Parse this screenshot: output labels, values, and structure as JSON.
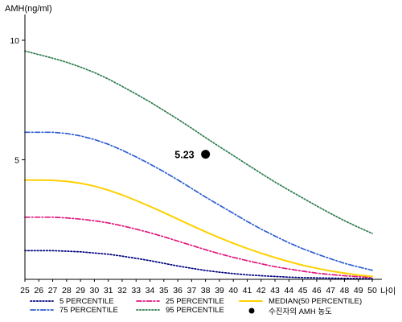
{
  "chart_data": {
    "type": "line",
    "ylabel": "AMH(ng/ml)",
    "xlabel": "나이",
    "x": [
      25,
      26,
      27,
      28,
      29,
      30,
      31,
      32,
      33,
      34,
      35,
      36,
      37,
      38,
      39,
      40,
      41,
      42,
      43,
      44,
      45,
      46,
      47,
      48,
      49,
      50
    ],
    "y_ticks": [
      5,
      10
    ],
    "ylim": [
      0,
      11
    ],
    "xlim": [
      25,
      50
    ],
    "grid": false,
    "legend_position": "bottom",
    "series": [
      {
        "name": "5 PERCENTILE",
        "color": "#000080",
        "dash": "dotted",
        "values": [
          1.2,
          1.2,
          1.2,
          1.18,
          1.15,
          1.1,
          1.05,
          0.97,
          0.88,
          0.78,
          0.67,
          0.56,
          0.46,
          0.37,
          0.3,
          0.24,
          0.19,
          0.15,
          0.12,
          0.09,
          0.07,
          0.06,
          0.05,
          0.04,
          0.03,
          0.03
        ]
      },
      {
        "name": "25 PERCENTILE",
        "color": "#E0177E",
        "dash": "dashdot",
        "values": [
          2.6,
          2.6,
          2.6,
          2.57,
          2.52,
          2.45,
          2.36,
          2.24,
          2.1,
          1.95,
          1.78,
          1.6,
          1.42,
          1.24,
          1.07,
          0.92,
          0.78,
          0.65,
          0.53,
          0.43,
          0.34,
          0.26,
          0.2,
          0.15,
          0.11,
          0.08
        ]
      },
      {
        "name": "MEDIAN(50 PERCENTILE)",
        "color": "#FFD000",
        "dash": "solid",
        "values": [
          4.15,
          4.15,
          4.14,
          4.1,
          4.02,
          3.9,
          3.73,
          3.53,
          3.3,
          3.05,
          2.79,
          2.52,
          2.25,
          1.99,
          1.74,
          1.51,
          1.29,
          1.09,
          0.91,
          0.74,
          0.59,
          0.46,
          0.35,
          0.26,
          0.18,
          0.12
        ]
      },
      {
        "name": "75 PERCENTILE",
        "color": "#2E5FD0",
        "dash": "dashdot",
        "values": [
          6.15,
          6.15,
          6.15,
          6.1,
          6.0,
          5.85,
          5.65,
          5.4,
          5.12,
          4.82,
          4.5,
          4.16,
          3.8,
          3.44,
          3.1,
          2.76,
          2.42,
          2.1,
          1.81,
          1.53,
          1.28,
          1.06,
          0.86,
          0.67,
          0.52,
          0.38
        ]
      },
      {
        "name": "95 PERCENTILE",
        "color": "#2E7D4F",
        "dash": "dotted",
        "values": [
          9.55,
          9.4,
          9.25,
          9.08,
          8.88,
          8.65,
          8.38,
          8.07,
          7.75,
          7.42,
          7.06,
          6.7,
          6.32,
          5.93,
          5.55,
          5.18,
          4.8,
          4.43,
          4.07,
          3.73,
          3.4,
          3.07,
          2.75,
          2.45,
          2.18,
          1.92
        ]
      }
    ],
    "point": {
      "name": "수진자의 AMH 농도",
      "x": 38,
      "y": 5.23,
      "label": "5.23"
    }
  }
}
